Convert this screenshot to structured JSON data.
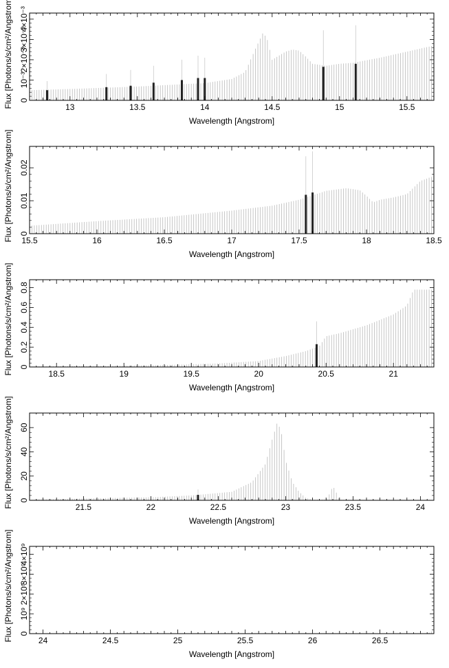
{
  "chart_data": [
    {
      "type": "bar",
      "xlabel": "Wavelength [Angstrom]",
      "ylabel": "Flux [Photons/s/cm²/Angstrom]",
      "xlim": [
        12.7,
        15.7
      ],
      "ylim": [
        0,
        0.0043
      ],
      "x_ticks": [
        {
          "value": 13,
          "label": "13"
        },
        {
          "value": 13.5,
          "label": "13.5"
        },
        {
          "value": 14,
          "label": "14"
        },
        {
          "value": 14.5,
          "label": "14.5"
        },
        {
          "value": 15,
          "label": "15"
        },
        {
          "value": 15.5,
          "label": "15.5"
        }
      ],
      "y_ticks": [
        {
          "value": 0,
          "label": "0"
        },
        {
          "value": 0.001,
          "label": "10⁻³"
        },
        {
          "value": 0.002,
          "label": "2×10⁻³"
        },
        {
          "value": 0.003,
          "label": "3×10⁻³"
        },
        {
          "value": 0.004,
          "label": "4×10⁻³"
        }
      ],
      "grid": false,
      "continuum": {
        "x": [
          12.7,
          13.0,
          13.5,
          14.0,
          14.2,
          14.3,
          14.38,
          14.43,
          14.46,
          14.5,
          14.55,
          14.6,
          14.65,
          14.7,
          14.75,
          14.8,
          14.9,
          15.0,
          15.1,
          15.3,
          15.5,
          15.7
        ],
        "flux": [
          0.0005,
          0.00056,
          0.00068,
          0.00085,
          0.00105,
          0.0014,
          0.0026,
          0.0033,
          0.0031,
          0.002,
          0.0022,
          0.0024,
          0.0025,
          0.00245,
          0.00215,
          0.0018,
          0.0017,
          0.0018,
          0.00185,
          0.0021,
          0.0024,
          0.0027
        ]
      },
      "lines": [
        {
          "x": 12.83,
          "flux": 0.0005,
          "err": 0.00095
        },
        {
          "x": 13.27,
          "flux": 0.00065,
          "err": 0.0013
        },
        {
          "x": 13.45,
          "flux": 0.00072,
          "err": 0.0015
        },
        {
          "x": 13.62,
          "flux": 0.00087,
          "err": 0.0017
        },
        {
          "x": 13.83,
          "flux": 0.001,
          "err": 0.002
        },
        {
          "x": 13.95,
          "flux": 0.0011,
          "err": 0.0022
        },
        {
          "x": 14.0,
          "flux": 0.0011,
          "err": 0.0021
        },
        {
          "x": 14.88,
          "flux": 0.00165,
          "err": 0.00345
        },
        {
          "x": 15.12,
          "flux": 0.0018,
          "err": 0.0037
        }
      ]
    },
    {
      "type": "bar",
      "xlabel": "Wavelength [Angstrom]",
      "ylabel": "Flux [Photons/s/cm²/Angstrom]",
      "xlim": [
        15.5,
        18.5
      ],
      "ylim": [
        0,
        0.0265
      ],
      "x_ticks": [
        {
          "value": 15.5,
          "label": "15.5"
        },
        {
          "value": 16,
          "label": "16"
        },
        {
          "value": 16.5,
          "label": "16.5"
        },
        {
          "value": 17,
          "label": "17"
        },
        {
          "value": 17.5,
          "label": "17.5"
        },
        {
          "value": 18,
          "label": "18"
        },
        {
          "value": 18.5,
          "label": "18.5"
        }
      ],
      "y_ticks": [
        {
          "value": 0,
          "label": "0"
        },
        {
          "value": 0.01,
          "label": "0.01"
        },
        {
          "value": 0.02,
          "label": "0.02"
        }
      ],
      "grid": false,
      "continuum": {
        "x": [
          15.5,
          16.0,
          16.5,
          17.0,
          17.3,
          17.5,
          17.7,
          17.85,
          17.95,
          18.0,
          18.05,
          18.1,
          18.2,
          18.3,
          18.4,
          18.5
        ],
        "flux": [
          0.0024,
          0.0038,
          0.005,
          0.007,
          0.0085,
          0.0103,
          0.013,
          0.0138,
          0.0132,
          0.0115,
          0.0095,
          0.0103,
          0.011,
          0.012,
          0.016,
          0.0175
        ]
      },
      "lines": [
        {
          "x": 17.55,
          "flux": 0.0118,
          "err": 0.0235
        },
        {
          "x": 17.6,
          "flux": 0.0125,
          "err": 0.025
        }
      ]
    },
    {
      "type": "bar",
      "xlabel": "Wavelength [Angstrom]",
      "ylabel": "Flux [Photons/s/cm²/Angstrom]",
      "xlim": [
        18.3,
        21.3
      ],
      "ylim": [
        0,
        0.88
      ],
      "x_ticks": [
        {
          "value": 18.5,
          "label": "18.5"
        },
        {
          "value": 19,
          "label": "19"
        },
        {
          "value": 19.5,
          "label": "19.5"
        },
        {
          "value": 20,
          "label": "20"
        },
        {
          "value": 20.5,
          "label": "20.5"
        },
        {
          "value": 21,
          "label": "21"
        }
      ],
      "y_ticks": [
        {
          "value": 0,
          "label": "0"
        },
        {
          "value": 0.2,
          "label": "0.2"
        },
        {
          "value": 0.4,
          "label": "0.4"
        },
        {
          "value": 0.6,
          "label": "0.6"
        },
        {
          "value": 0.8,
          "label": "0.8"
        }
      ],
      "grid": false,
      "continuum": {
        "x": [
          18.3,
          18.8,
          19.3,
          19.7,
          20.0,
          20.2,
          20.35,
          20.45,
          20.5,
          20.6,
          20.8,
          21.0,
          21.1,
          21.15,
          21.3
        ],
        "flux": [
          0.005,
          0.01,
          0.02,
          0.035,
          0.06,
          0.11,
          0.16,
          0.21,
          0.31,
          0.34,
          0.42,
          0.53,
          0.62,
          0.78,
          0.78
        ]
      },
      "lines": [
        {
          "x": 20.43,
          "flux": 0.23,
          "err": 0.46
        }
      ]
    },
    {
      "type": "bar",
      "xlabel": "Wavelength [Angstrom]",
      "ylabel": "Flux [Photons/s/cm²/Angstrom]",
      "xlim": [
        21.1,
        24.1
      ],
      "ylim": [
        0,
        72
      ],
      "x_ticks": [
        {
          "value": 21.5,
          "label": "21.5"
        },
        {
          "value": 22,
          "label": "22"
        },
        {
          "value": 22.5,
          "label": "22.5"
        },
        {
          "value": 23,
          "label": "23"
        },
        {
          "value": 23.5,
          "label": "23.5"
        },
        {
          "value": 24,
          "label": "24"
        }
      ],
      "y_ticks": [
        {
          "value": 0,
          "label": "0"
        },
        {
          "value": 20,
          "label": "20"
        },
        {
          "value": 40,
          "label": "40"
        },
        {
          "value": 60,
          "label": "60"
        }
      ],
      "grid": false,
      "continuum": {
        "x": [
          21.1,
          21.5,
          22.0,
          22.3,
          22.6,
          22.75,
          22.85,
          22.9,
          22.94,
          22.97,
          23.0,
          23.05,
          23.1,
          23.15,
          23.2,
          23.3,
          23.33,
          23.35,
          23.37,
          23.4,
          23.6,
          23.8,
          24.1
        ],
        "flux": [
          0.5,
          1.5,
          2.5,
          4.0,
          7.0,
          15.0,
          30.0,
          50.0,
          65.0,
          55.0,
          33.0,
          15.0,
          7.0,
          2.0,
          0.5,
          0.5,
          6.0,
          12.0,
          8.0,
          0.4,
          0.2,
          0.1,
          0.1
        ]
      },
      "lines": [
        {
          "x": 22.35,
          "flux": 4.5,
          "err": 9.0
        }
      ]
    },
    {
      "type": "bar",
      "xlabel": "Wavelength [Angstrom]",
      "ylabel": "Flux [Photons/s/cm²/Angstrom]",
      "xlim": [
        23.9,
        26.9
      ],
      "ylim": [
        0,
        4400000000.0
      ],
      "x_ticks": [
        {
          "value": 24,
          "label": "24"
        },
        {
          "value": 24.5,
          "label": "24.5"
        },
        {
          "value": 25,
          "label": "25"
        },
        {
          "value": 25.5,
          "label": "25.5"
        },
        {
          "value": 26,
          "label": "26"
        },
        {
          "value": 26.5,
          "label": "26.5"
        }
      ],
      "y_ticks": [
        {
          "value": 0,
          "label": "0"
        },
        {
          "value": 1000000000.0,
          "label": "10⁹"
        },
        {
          "value": 2000000000.0,
          "label": "2×10⁹"
        },
        {
          "value": 3000000000.0,
          "label": "3×10⁹"
        },
        {
          "value": 4000000000.0,
          "label": "4×10⁹"
        }
      ],
      "grid": false,
      "continuum": {
        "x": [
          23.9,
          26.85,
          26.88,
          26.9
        ],
        "flux": [
          0,
          0,
          100000000.0,
          200000000.0
        ]
      },
      "lines": []
    }
  ]
}
